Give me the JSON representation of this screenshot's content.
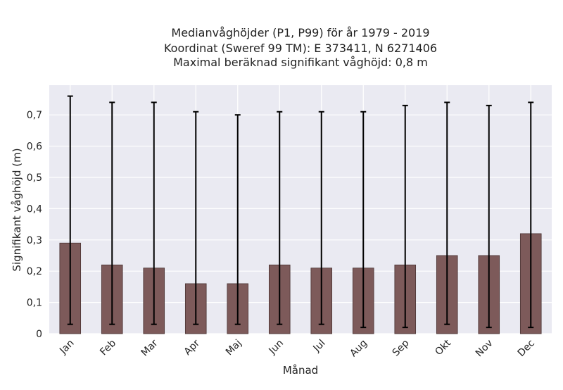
{
  "chart_data": {
    "type": "bar",
    "title_lines": [
      "Medianvåghöjder (P1, P99) för år 1979 - 2019",
      "Koordinat (Sweref 99 TM): E 373411, N 6271406",
      "Maximal beräknad signifikant våghöjd: 0,8 m"
    ],
    "xlabel": "Månad",
    "ylabel": "Signifikant våghöjd (m)",
    "categories": [
      "Jan",
      "Feb",
      "Mar",
      "Apr",
      "Maj",
      "Jun",
      "Jul",
      "Aug",
      "Sep",
      "Okt",
      "Nov",
      "Dec"
    ],
    "values": [
      0.29,
      0.22,
      0.21,
      0.16,
      0.16,
      0.22,
      0.21,
      0.21,
      0.22,
      0.25,
      0.25,
      0.32
    ],
    "p1": [
      0.03,
      0.03,
      0.03,
      0.03,
      0.03,
      0.03,
      0.03,
      0.02,
      0.02,
      0.03,
      0.02,
      0.02
    ],
    "p99": [
      0.76,
      0.74,
      0.74,
      0.71,
      0.7,
      0.71,
      0.71,
      0.71,
      0.73,
      0.74,
      0.73,
      0.74
    ],
    "ylim": [
      0,
      0.795
    ],
    "yticks": [
      0,
      0.1,
      0.2,
      0.3,
      0.4,
      0.5,
      0.6,
      0.7
    ],
    "ytick_labels": [
      "0",
      "0,1",
      "0,2",
      "0,3",
      "0,4",
      "0,5",
      "0,6",
      "0,7"
    ],
    "grid": true,
    "colors": {
      "bar": "#7d5a5a",
      "bar_edge": "#4a3434",
      "errorbar": "#000000",
      "plot_bg": "#eaeaf2",
      "grid": "#ffffff"
    }
  }
}
